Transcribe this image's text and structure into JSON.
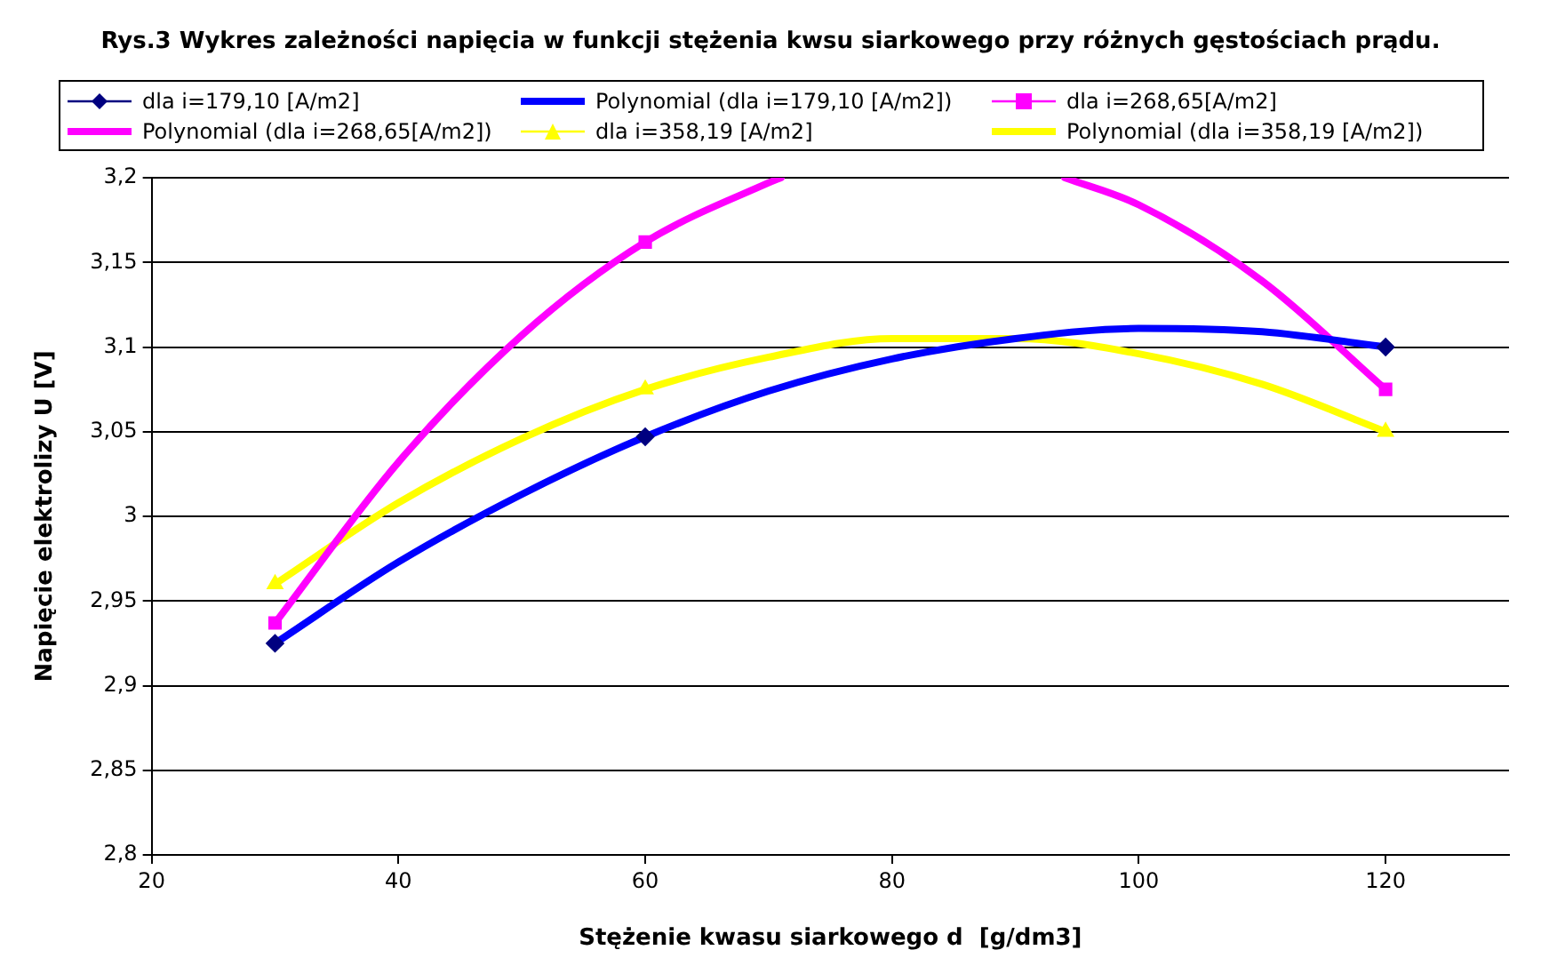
{
  "chart_data": {
    "type": "line",
    "title": "Rys.3 Wykres zależności napięcia w funkcji stężenia kwsu siarkowego przy różnych gęstościach prądu.",
    "xlabel": "Stężenie kwasu siarkowego d  [g/dm3]",
    "ylabel": "Napięcie elektrolizy U [V]",
    "xlim": [
      20,
      130
    ],
    "xticks": [
      20,
      40,
      60,
      80,
      100,
      120
    ],
    "ylim": [
      2.8,
      3.2
    ],
    "yticks": [
      {
        "value": 2.8,
        "label": "2,8"
      },
      {
        "value": 2.85,
        "label": "2,85"
      },
      {
        "value": 2.9,
        "label": "2,9"
      },
      {
        "value": 2.95,
        "label": "2,95"
      },
      {
        "value": 3,
        "label": "3"
      },
      {
        "value": 3.05,
        "label": "3,05"
      },
      {
        "value": 3.1,
        "label": "3,1"
      },
      {
        "value": 3.15,
        "label": "3,15"
      },
      {
        "value": 3.2,
        "label": "3,2"
      }
    ],
    "grid": "y",
    "legend": "top",
    "series": [
      {
        "name": "dla i=179,10 [A/m2]",
        "type": "scatter",
        "color": "#000080",
        "marker": "diamond",
        "x": [
          30,
          60,
          120
        ],
        "values": [
          2.925,
          3.047,
          3.1
        ]
      },
      {
        "name": "Polynomial (dla i=179,10 [A/m2])",
        "color": "#0000ff",
        "marker": "none",
        "x": [
          30,
          40,
          50,
          60,
          70,
          80,
          90,
          100,
          110,
          120
        ],
        "values": [
          2.925,
          2.973,
          3.013,
          3.047,
          3.074,
          3.093,
          3.105,
          3.111,
          3.109,
          3.1
        ]
      },
      {
        "name": "dla i=268,65[A/m2]",
        "type": "scatter",
        "color": "#ff00ff",
        "marker": "square",
        "x": [
          30,
          60,
          120
        ],
        "values": [
          2.937,
          3.162,
          3.075
        ]
      },
      {
        "name": "Polynomial (dla i=268,65[A/m2])",
        "color": "#ff00ff",
        "marker": "none",
        "x": [
          30,
          40,
          50,
          60,
          70,
          71,
          80,
          90,
          94,
          100,
          110,
          120
        ],
        "values": [
          2.937,
          3.032,
          3.107,
          3.162,
          3.197,
          3.2,
          null,
          null,
          3.2,
          3.184,
          3.139,
          3.075
        ]
      },
      {
        "name": "dla i=358,19 [A/m2]",
        "type": "scatter",
        "color": "#ffff00",
        "marker": "triangle",
        "x": [
          30,
          60,
          120
        ],
        "values": [
          2.96,
          3.075,
          3.05
        ]
      },
      {
        "name": "Polynomial (dla i=358,19 [A/m2])",
        "color": "#ffff00",
        "marker": "none",
        "x": [
          30,
          40,
          50,
          60,
          70,
          80,
          90,
          100,
          110,
          120
        ],
        "values": [
          2.96,
          3.008,
          3.046,
          3.075,
          3.094,
          3.105,
          3.105,
          3.096,
          3.078,
          3.05
        ]
      }
    ]
  }
}
